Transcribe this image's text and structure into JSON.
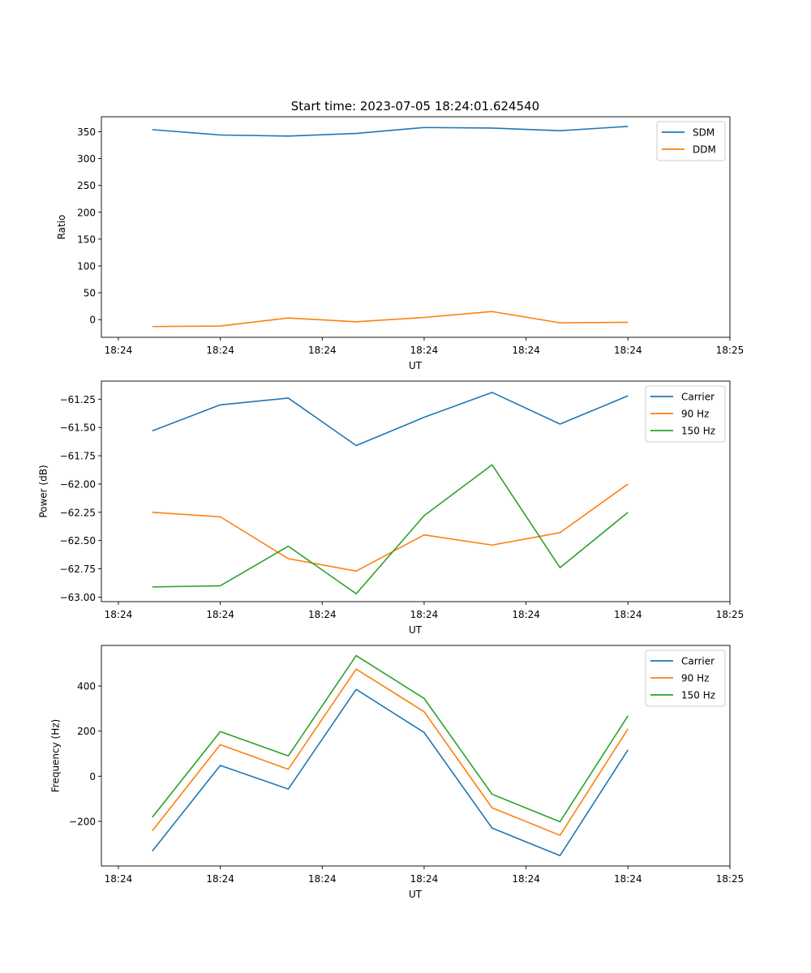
{
  "figure_title": "Start time: 2023-07-05 18:24:01.624540",
  "chart_data": [
    {
      "type": "line",
      "title": "Start time: 2023-07-05 18:24:01.624540",
      "xlabel": "UT",
      "ylabel": "Ratio",
      "x": [
        1,
        2,
        3,
        4,
        5,
        6,
        7,
        8
      ],
      "xlim": [
        0.25,
        9.5
      ],
      "xticks": [
        0.5,
        2,
        3.5,
        5,
        6.5,
        8,
        9.5
      ],
      "xtick_labels": [
        "18:24",
        "18:24",
        "18:24",
        "18:24",
        "18:24",
        "18:24",
        "18:25"
      ],
      "ylim": [
        -33,
        378
      ],
      "yticks": [
        0,
        50,
        100,
        150,
        200,
        250,
        300,
        350
      ],
      "ytick_labels": [
        "0",
        "50",
        "100",
        "150",
        "200",
        "250",
        "300",
        "350"
      ],
      "legend": "top-right",
      "series": [
        {
          "name": "SDM",
          "color": "#1f77b4",
          "values": [
            354,
            344,
            342,
            347,
            358,
            357,
            352,
            360
          ]
        },
        {
          "name": "DDM",
          "color": "#ff7f0e",
          "values": [
            -13,
            -12,
            3,
            -4,
            4,
            15,
            -6,
            -5
          ]
        }
      ]
    },
    {
      "type": "line",
      "title": "",
      "xlabel": "UT",
      "ylabel": "Power (dB)",
      "x": [
        1,
        2,
        3,
        4,
        5,
        6,
        7,
        8
      ],
      "xlim": [
        0.25,
        9.5
      ],
      "xticks": [
        0.5,
        2,
        3.5,
        5,
        6.5,
        8,
        9.5
      ],
      "xtick_labels": [
        "18:24",
        "18:24",
        "18:24",
        "18:24",
        "18:24",
        "18:24",
        "18:25"
      ],
      "ylim": [
        -63.04,
        -61.09
      ],
      "yticks": [
        -61.25,
        -61.5,
        -61.75,
        -62.0,
        -62.25,
        -62.5,
        -62.75,
        -63.0
      ],
      "ytick_labels": [
        "−61.25",
        "−61.50",
        "−61.75",
        "−62.00",
        "−62.25",
        "−62.50",
        "−62.75",
        "−63.00"
      ],
      "legend": "top-right",
      "series": [
        {
          "name": "Carrier",
          "color": "#1f77b4",
          "values": [
            -61.53,
            -61.3,
            -61.24,
            -61.66,
            -61.41,
            -61.19,
            -61.47,
            -61.22
          ]
        },
        {
          "name": "90 Hz",
          "color": "#ff7f0e",
          "values": [
            -62.25,
            -62.29,
            -62.66,
            -62.77,
            -62.45,
            -62.54,
            -62.43,
            -62.0
          ]
        },
        {
          "name": "150 Hz",
          "color": "#2ca02c",
          "values": [
            -62.91,
            -62.9,
            -62.55,
            -62.97,
            -62.28,
            -61.83,
            -62.74,
            -62.25
          ]
        }
      ]
    },
    {
      "type": "line",
      "title": "",
      "xlabel": "UT",
      "ylabel": "Frequency (Hz)",
      "x": [
        1,
        2,
        3,
        4,
        5,
        6,
        7,
        8
      ],
      "xlim": [
        0.25,
        9.5
      ],
      "xticks": [
        0.5,
        2,
        3.5,
        5,
        6.5,
        8,
        9.5
      ],
      "xtick_labels": [
        "18:24",
        "18:24",
        "18:24",
        "18:24",
        "18:24",
        "18:24",
        "18:25"
      ],
      "ylim": [
        -398,
        580
      ],
      "yticks": [
        -200,
        0,
        200,
        400
      ],
      "ytick_labels": [
        "−200",
        "0",
        "200",
        "400"
      ],
      "legend": "top-right",
      "series": [
        {
          "name": "Carrier",
          "color": "#1f77b4",
          "values": [
            -332,
            48,
            -57,
            385,
            194,
            -230,
            -352,
            117
          ]
        },
        {
          "name": "90 Hz",
          "color": "#ff7f0e",
          "values": [
            -242,
            140,
            31,
            475,
            286,
            -140,
            -262,
            210
          ]
        },
        {
          "name": "150 Hz",
          "color": "#2ca02c",
          "values": [
            -182,
            198,
            90,
            535,
            345,
            -80,
            -202,
            268
          ]
        }
      ]
    }
  ]
}
